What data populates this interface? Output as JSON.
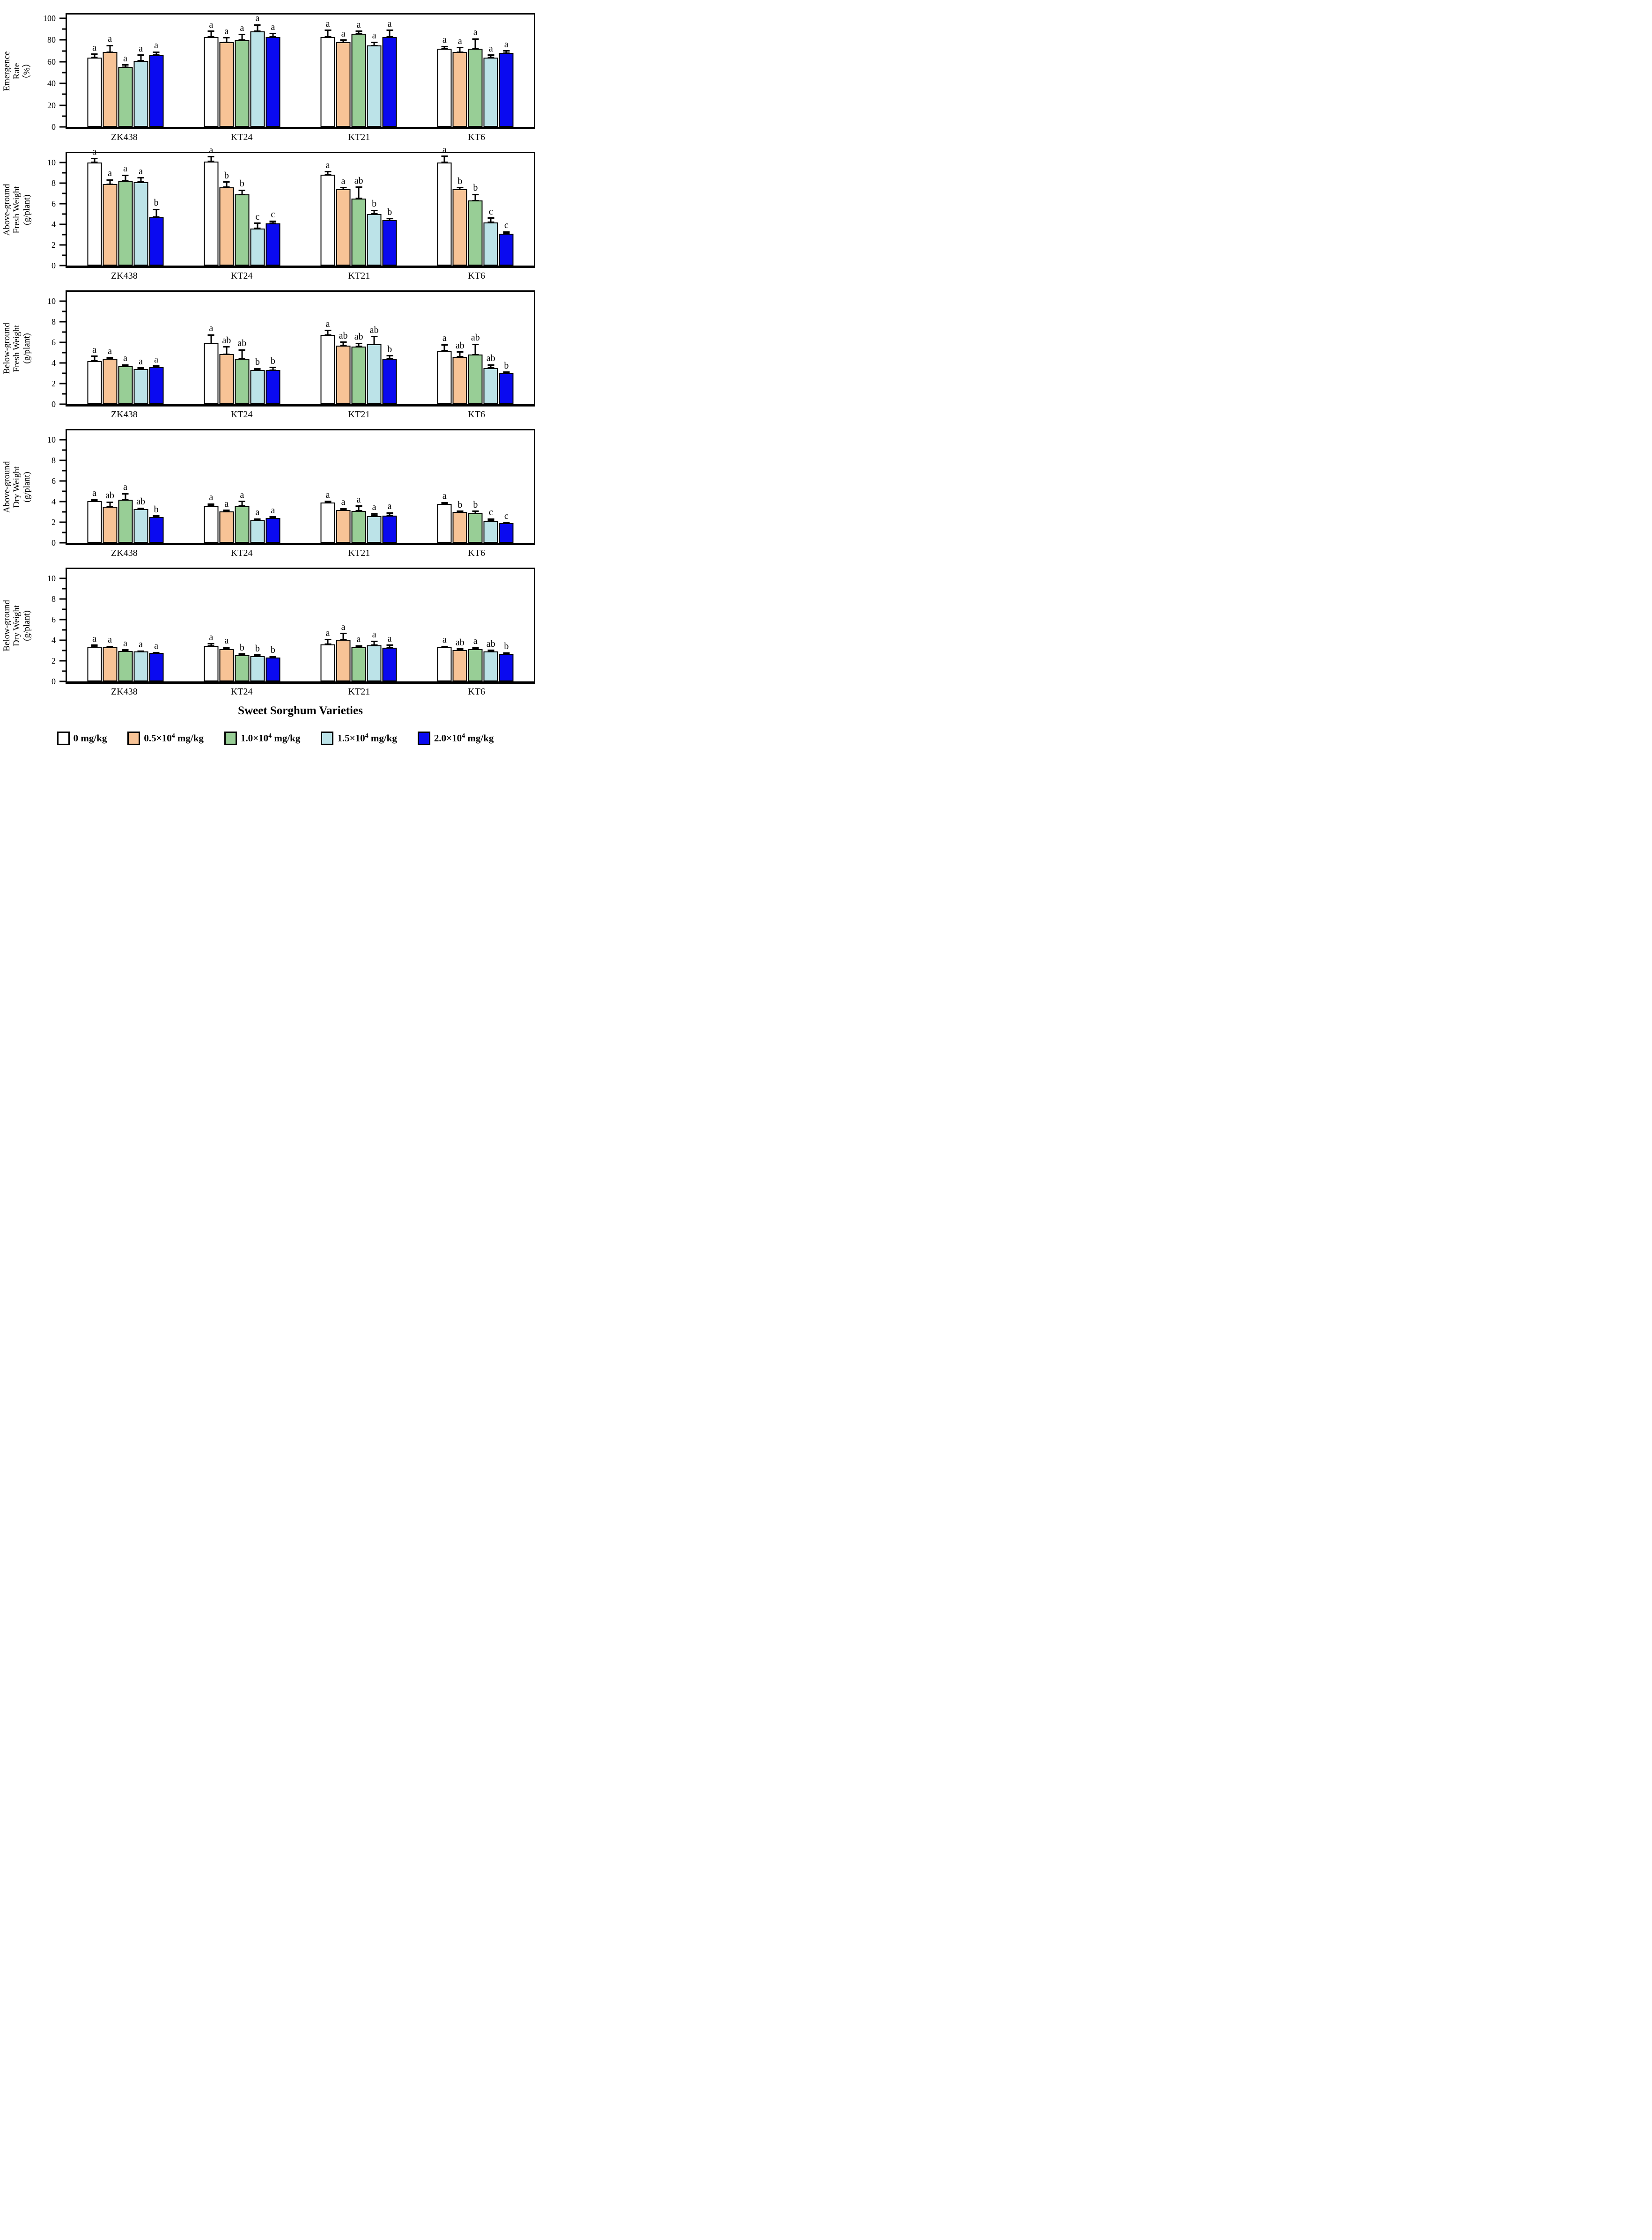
{
  "figure": {
    "xlabel": "Sweet Sorghum Varieties",
    "background": "#FFFFFF"
  },
  "colors": {
    "control": "#FFFFFF",
    "dose05": "#F7C396",
    "dose10": "#98CE96",
    "dose15": "#BCE3E8",
    "dose20": "#0A0AF0",
    "axis": "#000000"
  },
  "legend": {
    "items": [
      {
        "prefix": "0 mg/kg",
        "sup": "",
        "suffix": "",
        "color": "#FFFFFF"
      },
      {
        "prefix": "0.5×10",
        "sup": "4",
        "suffix": " mg/kg",
        "color": "#F7C396"
      },
      {
        "prefix": "1.0×10",
        "sup": "4",
        "suffix": " mg/kg",
        "color": "#98CE96"
      },
      {
        "prefix": "1.5×10",
        "sup": "4",
        "suffix": " mg/kg",
        "color": "#BCE3E8"
      },
      {
        "prefix": "2.0×10",
        "sup": "4",
        "suffix": " mg/kg",
        "color": "#0A0AF0"
      }
    ]
  },
  "chart_data": [
    {
      "type": "bar",
      "id": "emergence-rate",
      "ylabel": "Emergence Rate (%)",
      "ylabel_lines": [
        "Emergence",
        "Rate",
        "（%）"
      ],
      "categories": [
        "ZK438",
        "KT24",
        "KT21",
        "KT6"
      ],
      "yticks": [
        0,
        20,
        40,
        60,
        80,
        100
      ],
      "yticks_minor": [
        10,
        30,
        50,
        70,
        90
      ],
      "ylim": [
        0,
        100
      ],
      "display_max": 103.5,
      "grid": false,
      "series": [
        {
          "name": "0 mg/kg",
          "color": "#FFFFFF",
          "values": [
            64,
            83,
            83,
            72
          ],
          "errors": [
            3,
            5,
            6,
            2
          ],
          "letters": [
            "a",
            "a",
            "a",
            "a"
          ]
        },
        {
          "name": "0.5×10⁴ mg/kg",
          "color": "#F7C396",
          "values": [
            69,
            78,
            78,
            69
          ],
          "errors": [
            6,
            4,
            2,
            4
          ],
          "letters": [
            "a",
            "a",
            "a",
            "a"
          ]
        },
        {
          "name": "1.0×10⁴ mg/kg",
          "color": "#98CE96",
          "values": [
            55,
            80,
            86,
            72
          ],
          "errors": [
            2,
            5,
            2,
            9
          ],
          "letters": [
            "a",
            "a",
            "a",
            "a"
          ]
        },
        {
          "name": "1.5×10⁴ mg/kg",
          "color": "#BCE3E8",
          "values": [
            61,
            88,
            75,
            64
          ],
          "errors": [
            5,
            6,
            3,
            2
          ],
          "letters": [
            "a",
            "a",
            "a",
            "a"
          ]
        },
        {
          "name": "2.0×10⁴ mg/kg",
          "color": "#0A0AF0",
          "values": [
            66,
            83,
            83,
            68
          ],
          "errors": [
            3,
            3,
            6,
            2
          ],
          "letters": [
            "a",
            "a",
            "a",
            "a"
          ]
        }
      ]
    },
    {
      "type": "bar",
      "id": "above-ground-fresh-weight",
      "ylabel": "Above-ground Fresh Weight (g/plant)",
      "ylabel_lines": [
        "Above-ground",
        "Fresh Weight",
        "(g/plant)"
      ],
      "categories": [
        "ZK438",
        "KT24",
        "KT21",
        "KT6"
      ],
      "yticks": [
        0,
        2,
        4,
        6,
        8,
        10
      ],
      "yticks_minor": [
        1,
        3,
        5,
        7,
        9
      ],
      "ylim": [
        0,
        10
      ],
      "display_max": 10.9,
      "grid": false,
      "series": [
        {
          "name": "0 mg/kg",
          "color": "#FFFFFF",
          "values": [
            10.0,
            10.1,
            8.8,
            10.0
          ],
          "errors": [
            0.4,
            0.45,
            0.3,
            0.6
          ],
          "letters": [
            "a",
            "a",
            "a",
            "a"
          ]
        },
        {
          "name": "0.5×10⁴ mg/kg",
          "color": "#F7C396",
          "values": [
            7.9,
            7.6,
            7.4,
            7.4
          ],
          "errors": [
            0.4,
            0.5,
            0.15,
            0.15
          ],
          "letters": [
            "a",
            "b",
            "a",
            "b"
          ]
        },
        {
          "name": "1.0×10⁴ mg/kg",
          "color": "#98CE96",
          "values": [
            8.2,
            6.9,
            6.5,
            6.3
          ],
          "errors": [
            0.55,
            0.4,
            1.1,
            0.6
          ],
          "letters": [
            "a",
            "b",
            "ab",
            "b"
          ]
        },
        {
          "name": "1.5×10⁴ mg/kg",
          "color": "#BCE3E8",
          "values": [
            8.1,
            3.6,
            5.0,
            4.2
          ],
          "errors": [
            0.4,
            0.5,
            0.35,
            0.4
          ],
          "letters": [
            "a",
            "c",
            "b",
            "c"
          ]
        },
        {
          "name": "2.0×10⁴ mg/kg",
          "color": "#0A0AF0",
          "values": [
            4.7,
            4.1,
            4.4,
            3.1
          ],
          "errors": [
            0.75,
            0.2,
            0.15,
            0.15
          ],
          "letters": [
            "b",
            "c",
            "b",
            "c"
          ]
        }
      ]
    },
    {
      "type": "bar",
      "id": "below-ground-fresh-weight",
      "ylabel": "Below-ground Fresh Weight (g/plant)",
      "ylabel_lines": [
        "Below-ground",
        "Fresh Weight",
        "(g/plant)"
      ],
      "categories": [
        "ZK438",
        "KT24",
        "KT21",
        "KT6"
      ],
      "yticks": [
        0,
        2,
        4,
        6,
        8,
        10
      ],
      "yticks_minor": [
        1,
        3,
        5,
        7,
        9
      ],
      "ylim": [
        0,
        10
      ],
      "display_max": 10.9,
      "grid": false,
      "series": [
        {
          "name": "0 mg/kg",
          "color": "#FFFFFF",
          "values": [
            4.2,
            5.9,
            6.7,
            5.2
          ],
          "errors": [
            0.45,
            0.8,
            0.45,
            0.55
          ],
          "letters": [
            "a",
            "a",
            "a",
            "a"
          ]
        },
        {
          "name": "0.5×10⁴ mg/kg",
          "color": "#F7C396",
          "values": [
            4.4,
            4.85,
            5.7,
            4.6
          ],
          "errors": [
            0.1,
            0.7,
            0.3,
            0.45
          ],
          "letters": [
            "a",
            "ab",
            "ab",
            "ab"
          ]
        },
        {
          "name": "1.0×10⁴ mg/kg",
          "color": "#98CE96",
          "values": [
            3.7,
            4.4,
            5.6,
            4.8
          ],
          "errors": [
            0.1,
            0.85,
            0.3,
            1.0
          ],
          "letters": [
            "a",
            "ab",
            "ab",
            "ab"
          ]
        },
        {
          "name": "1.5×10⁴ mg/kg",
          "color": "#BCE3E8",
          "values": [
            3.4,
            3.3,
            5.8,
            3.5
          ],
          "errors": [
            0.1,
            0.15,
            0.75,
            0.3
          ],
          "letters": [
            "a",
            "b",
            "ab",
            "ab"
          ]
        },
        {
          "name": "2.0×10⁴ mg/kg",
          "color": "#0A0AF0",
          "values": [
            3.6,
            3.3,
            4.4,
            3.0
          ],
          "errors": [
            0.1,
            0.25,
            0.3,
            0.1
          ],
          "letters": [
            "a",
            "b",
            "b",
            "b"
          ]
        }
      ]
    },
    {
      "type": "bar",
      "id": "above-ground-dry-weight",
      "ylabel": "Above-ground Dry Weight (g/plant)",
      "ylabel_lines": [
        "Above-ground",
        "Dry Weight",
        "(g/plant)"
      ],
      "categories": [
        "ZK438",
        "KT24",
        "KT21",
        "KT6"
      ],
      "yticks": [
        0,
        2,
        4,
        6,
        8,
        10
      ],
      "yticks_minor": [
        1,
        3,
        5,
        7,
        9
      ],
      "ylim": [
        0,
        10
      ],
      "display_max": 10.9,
      "grid": false,
      "series": [
        {
          "name": "0 mg/kg",
          "color": "#FFFFFF",
          "values": [
            4.05,
            3.6,
            3.9,
            3.75
          ],
          "errors": [
            0.15,
            0.15,
            0.1,
            0.15
          ],
          "letters": [
            "a",
            "a",
            "a",
            "a"
          ]
        },
        {
          "name": "0.5×10⁴ mg/kg",
          "color": "#F7C396",
          "values": [
            3.5,
            3.05,
            3.2,
            3.0
          ],
          "errors": [
            0.45,
            0.1,
            0.1,
            0.05
          ],
          "letters": [
            "ab",
            "a",
            "a",
            "b"
          ]
        },
        {
          "name": "1.0×10⁴ mg/kg",
          "color": "#98CE96",
          "values": [
            4.2,
            3.55,
            3.1,
            2.85
          ],
          "errors": [
            0.55,
            0.45,
            0.45,
            0.2
          ],
          "letters": [
            "a",
            "a",
            "a",
            "b"
          ]
        },
        {
          "name": "1.5×10⁴ mg/kg",
          "color": "#BCE3E8",
          "values": [
            3.25,
            2.2,
            2.6,
            2.15
          ],
          "errors": [
            0.1,
            0.1,
            0.2,
            0.15
          ],
          "letters": [
            "ab",
            "a",
            "a",
            "c"
          ]
        },
        {
          "name": "2.0×10⁴ mg/kg",
          "color": "#0A0AF0",
          "values": [
            2.5,
            2.4,
            2.65,
            1.9
          ],
          "errors": [
            0.1,
            0.1,
            0.25,
            0.05
          ],
          "letters": [
            "b",
            "a",
            "a",
            "c"
          ]
        }
      ]
    },
    {
      "type": "bar",
      "id": "below-ground-dry-weight",
      "ylabel": "Below-ground Dry Weight (g/plant)",
      "ylabel_lines": [
        "Below-ground",
        "Dry Weight",
        "(g/plant)"
      ],
      "categories": [
        "ZK438",
        "KT24",
        "KT21",
        "KT6"
      ],
      "yticks": [
        0,
        2,
        4,
        6,
        8,
        10
      ],
      "yticks_minor": [
        1,
        3,
        5,
        7,
        9
      ],
      "ylim": [
        0,
        10
      ],
      "display_max": 10.9,
      "grid": false,
      "series": [
        {
          "name": "0 mg/kg",
          "color": "#FFFFFF",
          "values": [
            3.35,
            3.45,
            3.6,
            3.3
          ],
          "errors": [
            0.15,
            0.2,
            0.45,
            0.1
          ],
          "letters": [
            "a",
            "a",
            "a",
            "a"
          ]
        },
        {
          "name": "0.5×10⁴ mg/kg",
          "color": "#F7C396",
          "values": [
            3.3,
            3.15,
            4.05,
            3.05
          ],
          "errors": [
            0.1,
            0.15,
            0.6,
            0.1
          ],
          "letters": [
            "a",
            "a",
            "a",
            "ab"
          ]
        },
        {
          "name": "1.0×10⁴ mg/kg",
          "color": "#98CE96",
          "values": [
            2.95,
            2.55,
            3.3,
            3.15
          ],
          "errors": [
            0.1,
            0.1,
            0.15,
            0.12
          ],
          "letters": [
            "a",
            "b",
            "a",
            "a"
          ]
        },
        {
          "name": "1.5×10⁴ mg/kg",
          "color": "#BCE3E8",
          "values": [
            2.9,
            2.45,
            3.5,
            2.9
          ],
          "errors": [
            0.05,
            0.1,
            0.4,
            0.1
          ],
          "letters": [
            "a",
            "b",
            "a",
            "ab"
          ]
        },
        {
          "name": "2.0×10⁴ mg/kg",
          "color": "#0A0AF0",
          "values": [
            2.75,
            2.3,
            3.25,
            2.7
          ],
          "errors": [
            0.05,
            0.1,
            0.25,
            0.07
          ],
          "letters": [
            "a",
            "b",
            "a",
            "b"
          ]
        }
      ]
    }
  ]
}
